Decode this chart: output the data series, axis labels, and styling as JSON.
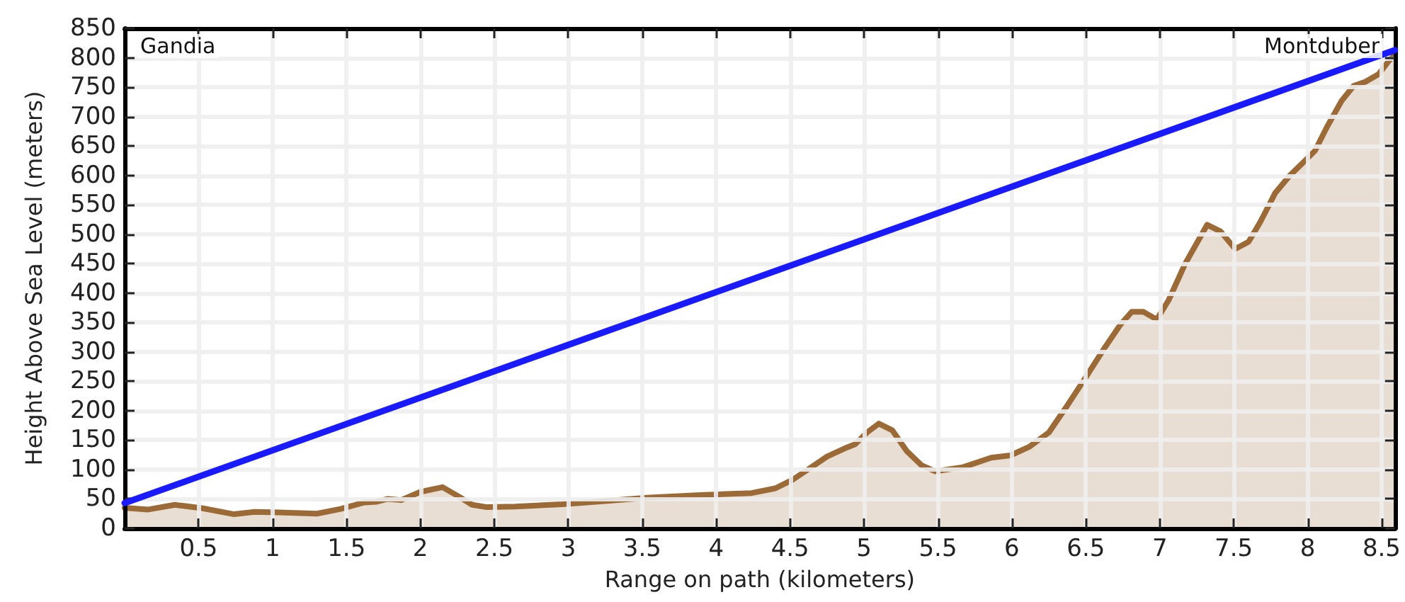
{
  "chart_data": {
    "type": "area",
    "xlabel": "Range on path (kilometers)",
    "ylabel": "Height Above Sea Level (meters)",
    "annotations": [
      "Gandia",
      "Montduber"
    ],
    "series": [
      {
        "color": "#9b6a36",
        "x": [
          0,
          0.16,
          0.34,
          0.53,
          0.74,
          0.88,
          1.04,
          1.3,
          1.46,
          1.62,
          1.7,
          1.78,
          1.87,
          2.0,
          2.15,
          2.26,
          2.35,
          2.45,
          2.64,
          2.96,
          3.28,
          3.53,
          3.92,
          4.04,
          4.24,
          4.4,
          4.52,
          4.62,
          4.75,
          4.87,
          4.94,
          5.02,
          5.1,
          5.19,
          5.29,
          5.39,
          5.48,
          5.67,
          5.86,
          5.99,
          6.12,
          6.25,
          6.37,
          6.5,
          6.63,
          6.73,
          6.81,
          6.89,
          6.98,
          7.06,
          7.17,
          7.32,
          7.41,
          7.51,
          7.6,
          7.68,
          7.78,
          7.88,
          7.97,
          8.05,
          8.13,
          8.23,
          8.31,
          8.39,
          8.48,
          8.55,
          8.59
        ],
        "values": [
          35,
          32,
          40,
          34,
          24,
          28,
          27,
          25,
          33,
          44,
          45,
          50,
          48,
          62,
          70,
          54,
          40,
          36,
          37,
          41,
          47,
          52,
          57,
          58,
          60,
          68,
          83,
          100,
          122,
          136,
          143,
          163,
          178,
          167,
          131,
          107,
          97,
          104,
          120,
          124,
          139,
          163,
          207,
          257,
          308,
          345,
          368,
          368,
          355,
          388,
          449,
          516,
          505,
          475,
          487,
          521,
          570,
          600,
          622,
          642,
          682,
          727,
          752,
          759,
          772,
          795,
          805
        ]
      },
      {
        "type": "line",
        "color": "#1a1aff",
        "x": [
          0,
          8.59
        ],
        "values": [
          43,
          813
        ]
      }
    ],
    "xlim": [
      0,
      8.59
    ],
    "xticks": [
      0.5,
      1,
      1.5,
      2,
      2.5,
      3,
      3.5,
      4,
      4.5,
      5,
      5.5,
      6,
      6.5,
      7,
      7.5,
      8,
      8.5
    ],
    "ylim": [
      0,
      850
    ],
    "yticks": [
      0,
      50,
      100,
      150,
      200,
      250,
      300,
      350,
      400,
      450,
      500,
      550,
      600,
      650,
      700,
      750,
      800,
      850
    ],
    "grid": true,
    "marker": "none",
    "line_style": "solid"
  }
}
